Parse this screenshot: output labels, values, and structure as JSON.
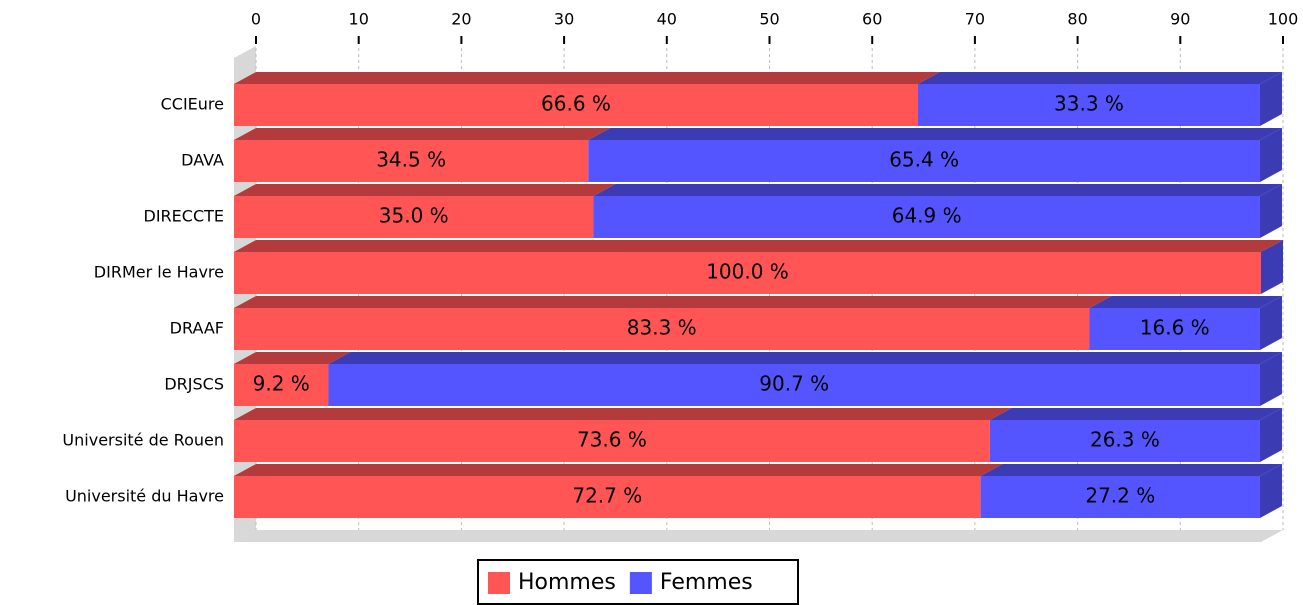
{
  "chart_data": {
    "type": "stacked-bar-3d",
    "categories": [
      "CCIEure",
      "DAVA",
      "DIRECCTE",
      "DIRMer le Havre",
      "DRAAF",
      "DRJSCS",
      "Université de Rouen",
      "Université du Havre"
    ],
    "series": [
      {
        "name": "Hommes",
        "color": "#ff5555",
        "values": [
          66.6,
          34.5,
          35.0,
          100.0,
          83.3,
          9.2,
          73.6,
          72.7
        ],
        "value_labels": [
          "66.6 %",
          "34.5 %",
          "35.0 %",
          "100.0 %",
          "83.3 %",
          "9.2 %",
          "73.6 %",
          "72.7 %"
        ]
      },
      {
        "name": "Femmes",
        "color": "#5555ff",
        "values": [
          33.3,
          65.4,
          64.9,
          0,
          16.6,
          90.7,
          26.3,
          27.2
        ],
        "value_labels": [
          "33.3 %",
          "65.4 %",
          "64.9 %",
          null,
          "16.6 %",
          "90.7 %",
          "26.3 %",
          "27.2 %"
        ]
      }
    ],
    "xlim": [
      0,
      100
    ],
    "xticks": [
      0,
      10,
      20,
      30,
      40,
      50,
      60,
      70,
      80,
      90,
      100
    ],
    "grid": true,
    "legend": "bottom"
  }
}
